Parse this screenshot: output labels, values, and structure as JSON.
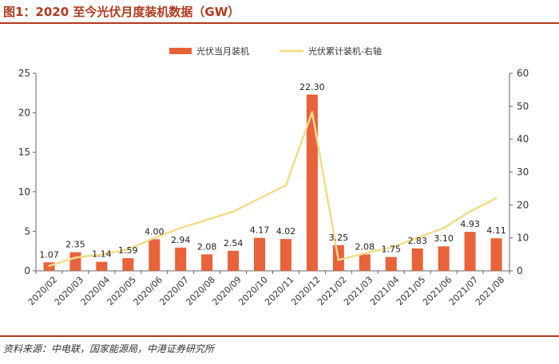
{
  "header": {
    "title": "图1：2020 至今光伏月度装机数据（GW）"
  },
  "footer": {
    "source": "资料来源：中电联，国家能源局，中港证券研究所"
  },
  "colors": {
    "bar": "#E8623A",
    "line": "#F3DC8A",
    "accent": "#B23A1E"
  },
  "chart_data": {
    "type": "bar",
    "title": "",
    "categories": [
      "2020/02",
      "2020/03",
      "2020/04",
      "2020/05",
      "2020/06",
      "2020/07",
      "2020/08",
      "2020/09",
      "2020/10",
      "2020/11",
      "2020/12",
      "2021/02",
      "2021/03",
      "2021/04",
      "2021/05",
      "2021/06",
      "2021/07",
      "2021/08"
    ],
    "series": [
      {
        "name": "光伏当月装机",
        "type": "bar",
        "axis": "left",
        "values": [
          1.07,
          2.35,
          1.14,
          1.59,
          4.0,
          2.94,
          2.08,
          2.54,
          4.17,
          4.02,
          22.3,
          3.25,
          2.08,
          1.75,
          2.83,
          3.1,
          4.93,
          4.11
        ],
        "labels": [
          "1.07",
          "2.35",
          "1.14",
          "1.59",
          "4.00",
          "2.94",
          "2.08",
          "2.54",
          "4.17",
          "4.02",
          "22.30",
          "3.25",
          "2.08",
          "1.75",
          "2.83",
          "3.10",
          "4.93",
          "4.11"
        ]
      },
      {
        "name": "光伏累计装机-右轴",
        "type": "line",
        "axis": "right",
        "values": [
          1.5,
          4.0,
          5.0,
          6.5,
          10.0,
          13.0,
          15.5,
          18.0,
          22.0,
          26.0,
          48.2,
          3.3,
          5.3,
          7.1,
          10.0,
          13.0,
          18.0,
          22.1
        ]
      }
    ],
    "y_left": {
      "ticks": [
        "0",
        "5",
        "10",
        "15",
        "20",
        "25"
      ],
      "range": [
        0,
        25
      ]
    },
    "y_right": {
      "ticks": [
        "0",
        "10",
        "20",
        "30",
        "40",
        "50",
        "60"
      ],
      "range": [
        0,
        60
      ]
    },
    "legend": "top-center",
    "grid": false
  }
}
